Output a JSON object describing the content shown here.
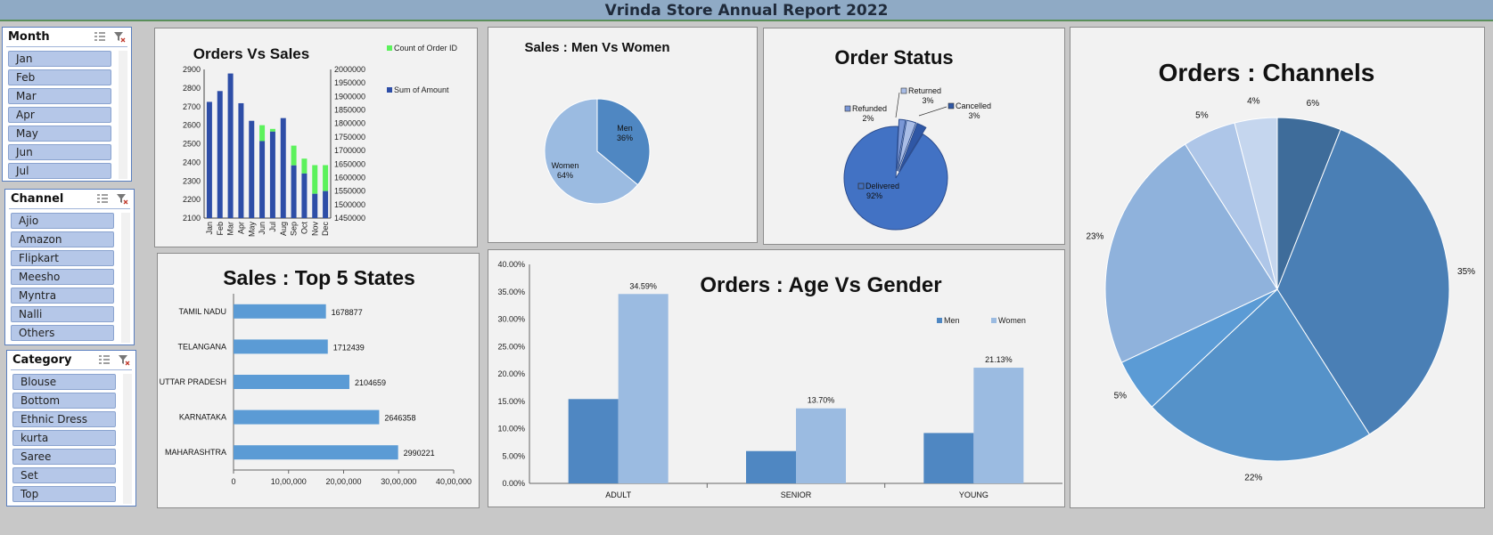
{
  "title": "Vrinda Store Annual Report 2022",
  "slicers": {
    "month": {
      "header": "Month",
      "items": [
        "Jan",
        "Feb",
        "Mar",
        "Apr",
        "May",
        "Jun",
        "Jul"
      ]
    },
    "channel": {
      "header": "Channel",
      "items": [
        "Ajio",
        "Amazon",
        "Flipkart",
        "Meesho",
        "Myntra",
        "Nalli",
        "Others"
      ]
    },
    "category": {
      "header": "Category",
      "items": [
        "Blouse",
        "Bottom",
        "Ethnic Dress",
        "kurta",
        "Saree",
        "Set",
        "Top"
      ]
    }
  },
  "colors": {
    "dark_blue": "#2e4ea7",
    "green": "#5cf25c",
    "light_blue": "#9bbbe1",
    "mid_blue": "#4f87c2",
    "bar_blue": "#5b9bd5"
  },
  "chart_data": [
    {
      "id": "orders_vs_sales",
      "type": "bar",
      "title": "Orders Vs Sales",
      "categories": [
        "Jan",
        "Feb",
        "Mar",
        "Apr",
        "May",
        "Jun",
        "Jul",
        "Aug",
        "Sep",
        "Oct",
        "Nov",
        "Dec"
      ],
      "series": [
        {
          "name": "Count of Order ID",
          "axis": "left",
          "values": [
            2700,
            2750,
            2820,
            2690,
            2620,
            2600,
            2580,
            2610,
            2490,
            2420,
            2385,
            2385
          ]
        },
        {
          "name": "Sum of Amount",
          "axis": "right",
          "values": [
            1880000,
            1920000,
            1985000,
            1875000,
            1810000,
            1735000,
            1770000,
            1820000,
            1645000,
            1615000,
            1540000,
            1550000
          ]
        }
      ],
      "y_left_range": [
        2100,
        2900
      ],
      "y_left_ticks": [
        "2100",
        "2200",
        "2300",
        "2400",
        "2500",
        "2600",
        "2700",
        "2800",
        "2900"
      ],
      "y_right_range": [
        1450000,
        2000000
      ],
      "y_right_ticks": [
        "1450000",
        "1500000",
        "1550000",
        "1600000",
        "1650000",
        "1700000",
        "1750000",
        "1800000",
        "1850000",
        "1900000",
        "1950000",
        "2000000"
      ],
      "legend_position": "top-right"
    },
    {
      "id": "men_vs_women",
      "type": "pie",
      "title": "Sales : Men Vs Women",
      "slices": [
        {
          "label": "Men",
          "value": 36,
          "text": "36%"
        },
        {
          "label": "Women",
          "value": 64,
          "text": "64%"
        }
      ]
    },
    {
      "id": "order_status",
      "type": "pie",
      "title": "Order Status",
      "slices": [
        {
          "label": "Delivered",
          "value": 92,
          "text": "92%"
        },
        {
          "label": "Refunded",
          "value": 2,
          "text": "2%"
        },
        {
          "label": "Returned",
          "value": 3,
          "text": "3%"
        },
        {
          "label": "Cancelled",
          "value": 3,
          "text": "3%"
        }
      ]
    },
    {
      "id": "orders_channels",
      "type": "pie",
      "title": "Orders : Channels",
      "slices": [
        {
          "value": 6,
          "text": "6%"
        },
        {
          "value": 35,
          "text": "35%"
        },
        {
          "value": 22,
          "text": "22%"
        },
        {
          "value": 5,
          "text": "5%"
        },
        {
          "value": 23,
          "text": "23%"
        },
        {
          "value": 5,
          "text": "5%"
        },
        {
          "value": 4,
          "text": "4%"
        }
      ]
    },
    {
      "id": "top5_states",
      "type": "bar",
      "orientation": "horizontal",
      "title": "Sales : Top 5 States",
      "categories": [
        "TAMIL NADU",
        "TELANGANA",
        "UTTAR PRADESH",
        "KARNATAKA",
        "MAHARASHTRA"
      ],
      "values": [
        1678877,
        1712439,
        2104659,
        2646358,
        2990221
      ],
      "value_labels": [
        "1678877",
        "1712439",
        "2104659",
        "2646358",
        "2990221"
      ],
      "x_range": [
        0,
        4000000
      ],
      "x_ticks": [
        "0",
        "10,00,000",
        "20,00,000",
        "30,00,000",
        "40,00,000"
      ]
    },
    {
      "id": "age_vs_gender",
      "type": "bar",
      "title": "Orders : Age Vs Gender",
      "categories": [
        "ADULT",
        "SENIOR",
        "YOUNG"
      ],
      "series": [
        {
          "name": "Men",
          "values": [
            15.4,
            5.9,
            9.2
          ],
          "labels": [
            "",
            "",
            ""
          ]
        },
        {
          "name": "Women",
          "values": [
            34.59,
            13.7,
            21.13
          ],
          "labels": [
            "34.59%",
            "13.70%",
            "21.13%"
          ]
        }
      ],
      "y_range": [
        0,
        40
      ],
      "y_ticks": [
        "0.00%",
        "5.00%",
        "10.00%",
        "15.00%",
        "20.00%",
        "25.00%",
        "30.00%",
        "35.00%",
        "40.00%"
      ],
      "legend_position": "top-right"
    }
  ]
}
